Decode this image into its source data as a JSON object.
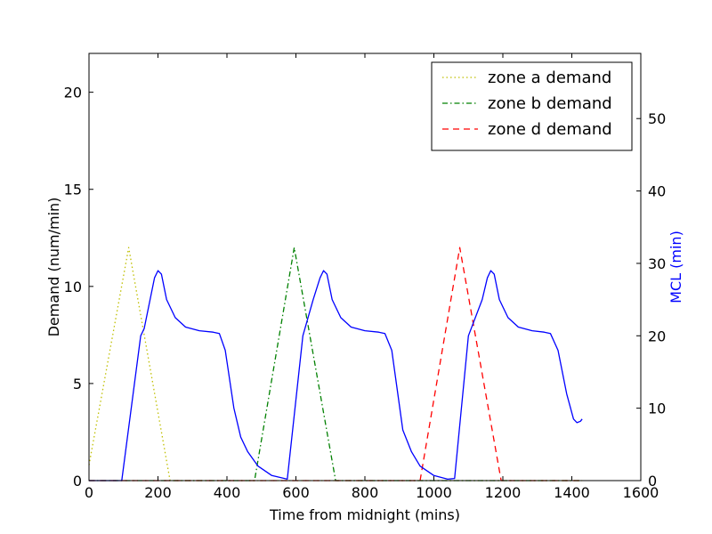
{
  "chart_data": {
    "type": "line",
    "xlabel": "Time from midnight (mins)",
    "ylabel": "Demand (num/min)",
    "y2label": "MCL (min)",
    "xlim": [
      0,
      1600
    ],
    "ylim": [
      0,
      22
    ],
    "y2lim": [
      0,
      59
    ],
    "xticks": [
      0,
      200,
      400,
      600,
      800,
      1000,
      1200,
      1400,
      1600
    ],
    "yticks": [
      0,
      5,
      10,
      15,
      20
    ],
    "y2ticks": [
      0,
      10,
      20,
      30,
      40,
      50
    ],
    "legend_position": "upper right",
    "series": [
      {
        "name": "zone a demand",
        "axis": "left",
        "color": "#bfbf00",
        "style": "dotted",
        "x": [
          0,
          115,
          235,
          1430
        ],
        "y": [
          0.8,
          12,
          0,
          0
        ]
      },
      {
        "name": "zone b demand",
        "axis": "left",
        "color": "#008000",
        "style": "dashdot",
        "x": [
          0,
          480,
          595,
          715,
          1430
        ],
        "y": [
          0,
          0,
          12,
          0,
          0
        ]
      },
      {
        "name": "zone d demand",
        "axis": "left",
        "color": "#ff0000",
        "style": "dashed",
        "x": [
          0,
          960,
          1075,
          1195,
          1430
        ],
        "y": [
          0,
          0,
          12,
          0,
          0
        ]
      },
      {
        "axis": "right",
        "color": "#0000ff",
        "style": "solid",
        "x": [
          0,
          95,
          150,
          160,
          175,
          190,
          200,
          210,
          225,
          250,
          280,
          320,
          360,
          378,
          395,
          420,
          440,
          460,
          490,
          530,
          575,
          620,
          650,
          670,
          680,
          690,
          705,
          730,
          760,
          800,
          840,
          858,
          878,
          910,
          935,
          960,
          1000,
          1040,
          1060,
          1100,
          1140,
          1155,
          1165,
          1175,
          1190,
          1215,
          1245,
          1285,
          1320,
          1338,
          1360,
          1385,
          1405,
          1415,
          1425,
          1430
        ],
        "y": [
          0,
          0,
          20,
          21,
          24.5,
          28,
          29,
          28.5,
          25,
          22.5,
          21.2,
          20.7,
          20.5,
          20.3,
          18,
          10,
          6,
          4,
          2,
          0.7,
          0.2,
          20,
          25,
          28,
          29,
          28.5,
          25,
          22.5,
          21.2,
          20.7,
          20.5,
          20.3,
          18,
          7,
          4,
          2,
          0.7,
          0.2,
          0.3,
          20,
          25,
          28,
          29,
          28.5,
          25,
          22.5,
          21.2,
          20.7,
          20.5,
          20.3,
          18,
          12,
          8.5,
          8,
          8.2,
          8.5
        ]
      }
    ]
  }
}
